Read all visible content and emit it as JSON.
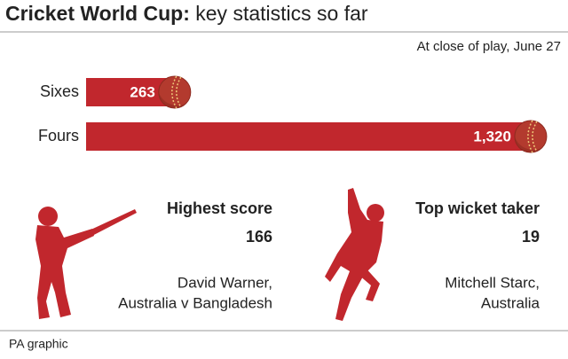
{
  "chart_data": {
    "type": "bar",
    "title": "Cricket World Cup:",
    "subtitle": "key statistics so far",
    "note": "At close of play, June 27",
    "categories": [
      "Sixes",
      "Fours"
    ],
    "values": [
      263,
      1320
    ],
    "value_labels": [
      "263",
      "1,320"
    ],
    "color": "#c1272d"
  },
  "stats": [
    {
      "label": "Highest score",
      "value": "166",
      "lines": [
        "David Warner,",
        "Australia v Bangladesh"
      ]
    },
    {
      "label": "Top wicket taker",
      "value": "19",
      "lines": [
        "Mitchell Starc,",
        "Australia"
      ]
    }
  ],
  "footer": "PA graphic"
}
